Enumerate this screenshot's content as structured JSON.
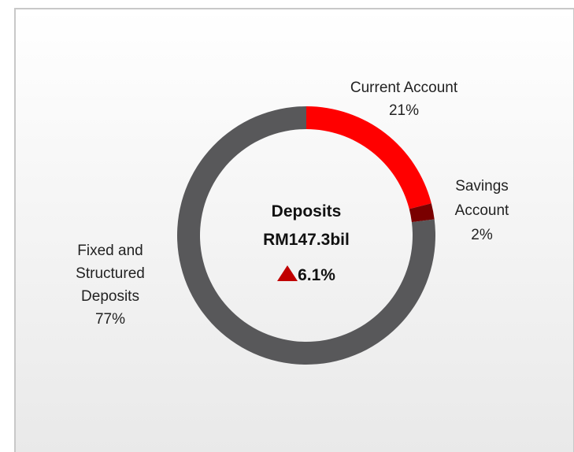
{
  "chart_data": {
    "type": "donut",
    "categories": [
      "Current Account",
      "Savings Account",
      "Fixed and Structured Deposits"
    ],
    "values": [
      21,
      2,
      77
    ],
    "value_labels": [
      "21%",
      "2%",
      "77%"
    ],
    "colors": [
      "#ff0000",
      "#7a0000",
      "#58585a"
    ],
    "center_title": "Deposits",
    "center_value": "RM147.3bil",
    "center_change": "6.1%"
  }
}
